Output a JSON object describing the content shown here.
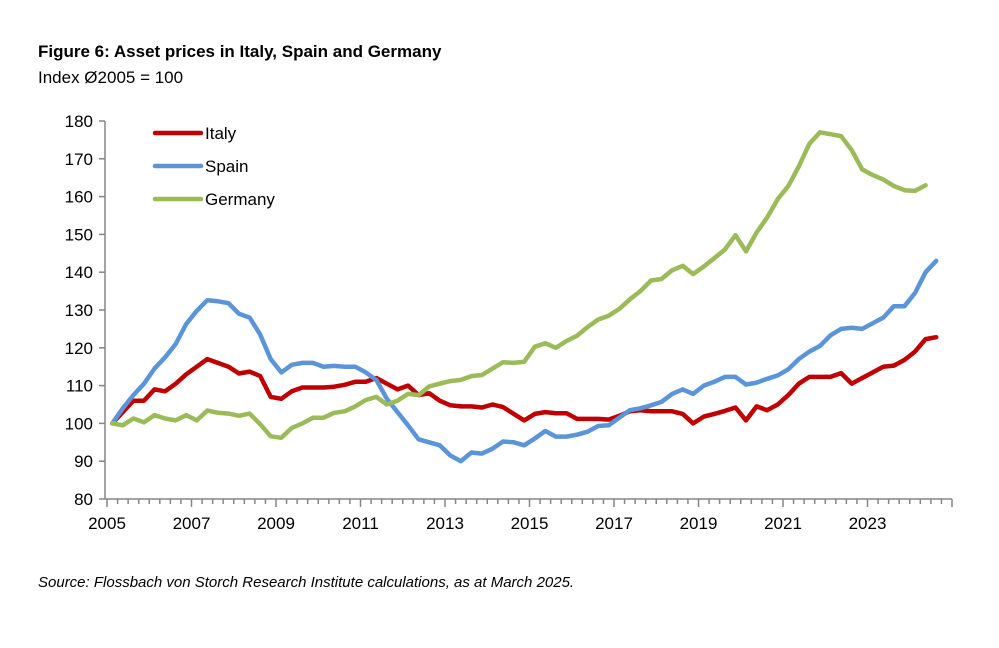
{
  "header": {
    "title": "Figure 6: Asset prices in Italy, Spain and Germany",
    "subtitle": "Index Ø2005 = 100"
  },
  "footer": {
    "source": "Source: Flossbach von Storch Research Institute calculations, as at March 2025."
  },
  "chart_data": {
    "type": "line",
    "title": "Figure 6: Asset prices in Italy, Spain and Germany",
    "subtitle": "Index Ø2005 = 100",
    "xlabel": "",
    "ylabel": "",
    "ylim": [
      80,
      180
    ],
    "yticks": [
      80,
      90,
      100,
      110,
      120,
      130,
      140,
      150,
      160,
      170,
      180
    ],
    "xlim": [
      "2005Q1",
      "2024Q4"
    ],
    "xticks": [
      "2005",
      "2007",
      "2009",
      "2011",
      "2013",
      "2015",
      "2017",
      "2019",
      "2021",
      "2023"
    ],
    "x_frequency": "quarterly",
    "x_start": "2005Q1",
    "grid": false,
    "legend": "top-left",
    "series": [
      {
        "name": "Italy",
        "color": "#C00000",
        "values": [
          100.0,
          103.0,
          106.0,
          106.0,
          109.0,
          108.5,
          110.5,
          113.0,
          115.0,
          117.0,
          116.0,
          115.0,
          113.2,
          113.7,
          112.5,
          107.0,
          106.5,
          108.5,
          109.5,
          109.5,
          109.5,
          109.7,
          110.2,
          111.0,
          111.0,
          112.0,
          110.5,
          109.0,
          110.0,
          107.5,
          108.0,
          106.0,
          104.8,
          104.5,
          104.5,
          104.2,
          105.0,
          104.3,
          102.5,
          100.8,
          102.5,
          103.0,
          102.7,
          102.7,
          101.2,
          101.2,
          101.2,
          101.0,
          102.0,
          103.2,
          103.5,
          103.2,
          103.2,
          103.2,
          102.5,
          100.0,
          101.8,
          102.5,
          103.3,
          104.2,
          100.8,
          104.5,
          103.5,
          105.0,
          107.5,
          110.5,
          112.3,
          112.3,
          112.3,
          113.3,
          110.5,
          112.0,
          113.5,
          115.0,
          115.3,
          116.8,
          119.0,
          122.3,
          122.8
        ]
      },
      {
        "name": "Spain",
        "color": "#5B95D9",
        "values": [
          100.0,
          104.0,
          107.5,
          110.5,
          114.5,
          117.5,
          121.0,
          126.3,
          129.8,
          132.6,
          132.3,
          131.8,
          129.0,
          128.0,
          123.5,
          117.0,
          113.5,
          115.5,
          116.0,
          116.0,
          115.0,
          115.2,
          115.0,
          115.0,
          113.5,
          111.5,
          106.5,
          103.0,
          99.5,
          95.8,
          95.0,
          94.2,
          91.5,
          90.0,
          92.3,
          92.0,
          93.3,
          95.2,
          95.0,
          94.2,
          96.0,
          98.0,
          96.5,
          96.5,
          97.0,
          97.8,
          99.3,
          99.5,
          101.5,
          103.5,
          104.0,
          104.8,
          105.7,
          107.8,
          109.0,
          107.8,
          110.0,
          111.0,
          112.3,
          112.3,
          110.3,
          110.8,
          111.8,
          112.7,
          114.3,
          117.0,
          119.0,
          120.5,
          123.3,
          125.0,
          125.3,
          125.0,
          126.5,
          128.0,
          131.0,
          131.0,
          134.5,
          140.0,
          143.0
        ]
      },
      {
        "name": "Germany",
        "color": "#9BBB59",
        "values": [
          100.0,
          99.5,
          101.3,
          100.3,
          102.2,
          101.3,
          100.8,
          102.2,
          100.8,
          103.4,
          102.8,
          102.6,
          102.0,
          102.6,
          99.8,
          96.6,
          96.2,
          98.8,
          100.0,
          101.5,
          101.5,
          102.8,
          103.2,
          104.5,
          106.2,
          107.0,
          105.0,
          106.0,
          107.8,
          107.5,
          109.8,
          110.5,
          111.2,
          111.5,
          112.5,
          112.8,
          114.5,
          116.2,
          116.0,
          116.3,
          120.3,
          121.2,
          120.0,
          121.8,
          123.2,
          125.5,
          127.5,
          128.5,
          130.3,
          132.8,
          135.0,
          137.8,
          138.2,
          140.5,
          141.7,
          139.5,
          141.5,
          143.7,
          146.0,
          149.8,
          145.5,
          150.5,
          154.5,
          159.3,
          162.8,
          168.0,
          174.0,
          177.0,
          176.5,
          176.0,
          172.3,
          167.2,
          165.7,
          164.5,
          162.8,
          161.7,
          161.5,
          163.0
        ]
      }
    ]
  }
}
